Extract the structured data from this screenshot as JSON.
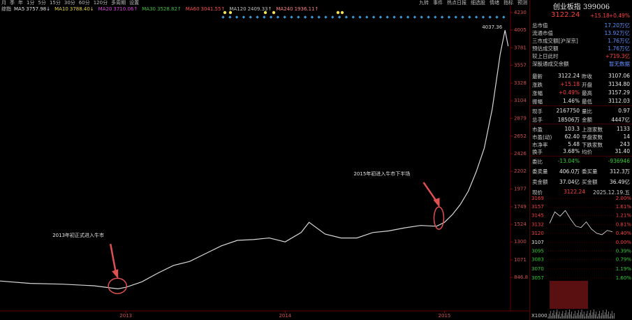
{
  "toolbar": {
    "periods": [
      "月",
      "季",
      "年",
      "1分",
      "5分",
      "15分",
      "30分",
      "60分",
      "120分",
      "多周期",
      "设置"
    ],
    "tools": [
      "九转",
      "事件",
      "热点日报",
      "细选股",
      "情绪",
      "指标",
      "预测"
    ]
  },
  "ma_legend": {
    "label": "综指",
    "items": [
      {
        "name": "MA5",
        "value": "3757.98↓",
        "color": "#e0e0e0"
      },
      {
        "name": "MA10",
        "value": "3788.40↓",
        "color": "#e8d23c"
      },
      {
        "name": "MA20",
        "value": "3710.06↑",
        "color": "#e040e0"
      },
      {
        "name": "MA30",
        "value": "3528.82↑",
        "color": "#40c040"
      },
      {
        "name": "MA60",
        "value": "3041.55↑",
        "color": "#ff5050"
      },
      {
        "name": "MA120",
        "value": "2409.33↑",
        "color": "#c0c0c0"
      },
      {
        "name": "MA240",
        "value": "1936.11↑",
        "color": "#ff8080"
      }
    ]
  },
  "chart_data": {
    "type": "line",
    "color": "#d8d8d8",
    "x": [
      2012.21,
      2012.4,
      2012.6,
      2012.8,
      2012.95,
      2013.0,
      2013.1,
      2013.2,
      2013.3,
      2013.4,
      2013.5,
      2013.6,
      2013.7,
      2013.8,
      2013.9,
      2014.0,
      2014.1,
      2014.15,
      2014.25,
      2014.35,
      2014.45,
      2014.55,
      2014.65,
      2014.75,
      2014.85,
      2014.95,
      2015.0,
      2015.05,
      2015.1,
      2015.15,
      2015.2,
      2015.25,
      2015.3,
      2015.35,
      2015.38,
      2015.4
    ],
    "values": [
      800,
      770,
      760,
      740,
      700,
      720,
      790,
      900,
      1000,
      1050,
      1150,
      1250,
      1320,
      1330,
      1350,
      1300,
      1420,
      1550,
      1400,
      1350,
      1350,
      1420,
      1440,
      1480,
      1510,
      1500,
      1550,
      1650,
      1780,
      1950,
      2200,
      2500,
      3000,
      3700,
      4005,
      3800
    ],
    "xlim": [
      2012.21,
      2015.41
    ],
    "ylim": [
      463,
      4319
    ],
    "xticks": [
      2013,
      2014,
      2015
    ],
    "yticks": [
      4230,
      4005,
      3781,
      3557,
      3328,
      3104,
      2879,
      2652,
      2426,
      2202,
      1977,
      1749,
      1524,
      1300,
      1071,
      846.8
    ],
    "peak_label": "4037.36",
    "annotations": [
      {
        "text": "2013年初正式进入牛市",
        "x": 2013.0,
        "y": 720
      },
      {
        "text": "2015年初进入牛市下半场",
        "x": 2015.0,
        "y": 1560
      }
    ]
  },
  "quote": {
    "title": "创业板指 399006",
    "price": "3122.24",
    "change": "+15.18",
    "change_pct": "+0.49%",
    "info": [
      [
        "总市值",
        "17.20万亿"
      ],
      [
        "流通市值",
        "13.92万亿"
      ],
      [
        "三市成交额[沪深京]",
        "1.76万亿"
      ],
      [
        "预估成交额",
        "1.76万亿"
      ],
      [
        "较上日此时",
        "+719.3亿"
      ],
      [
        "深股通成交余额",
        "暂无数据"
      ]
    ],
    "rows": [
      [
        "最新",
        "3122.24",
        "昨收",
        "3107.06"
      ],
      [
        "涨跌",
        "+15.18",
        "开盘",
        "3134.80"
      ],
      [
        "涨幅",
        "+0.49%",
        "最高",
        "3157.29"
      ],
      [
        "振幅",
        "1.46%",
        "最低",
        "3112.03"
      ],
      [
        "现手",
        "2167750",
        "量比",
        "0.97"
      ],
      [
        "总手",
        "18506万",
        "金额",
        "4447亿"
      ],
      [
        "市盈",
        "103.3",
        "上涨家数",
        "1133"
      ],
      [
        "市盈(动)",
        "62.40",
        "平盘家数",
        "14"
      ],
      [
        "市净率",
        "5.48",
        "下跌家数",
        "243"
      ],
      [
        "换手",
        "3.68%",
        "均价",
        "31.40"
      ],
      [
        "委比",
        "-13.04%",
        "",
        "-936946"
      ],
      [
        "委卖量",
        "406.0万",
        "委买量",
        "312.3万"
      ],
      [
        "卖金额",
        "37.04亿",
        "买金额",
        "36.49亿"
      ]
    ]
  },
  "intraday": {
    "header": [
      "现价",
      "3122.24",
      "2025.12.19.五"
    ],
    "ylim": [
      3057,
      3169
    ],
    "yticks": [
      3169,
      3157,
      3145,
      3132,
      3120,
      3107,
      3095,
      3083,
      3070,
      3057
    ],
    "pct_labels": [
      "2.00%",
      "1.61%",
      "1.21%",
      "0.81%",
      "0.40%",
      "0.00%",
      "0.39%",
      "0.79%",
      "1.19%",
      "1.60%"
    ],
    "values": [
      3134,
      3150,
      3144,
      3152,
      3140,
      3130,
      3128,
      3136,
      3126,
      3120,
      3118,
      3124,
      3122
    ],
    "volume_label": "X1000"
  }
}
